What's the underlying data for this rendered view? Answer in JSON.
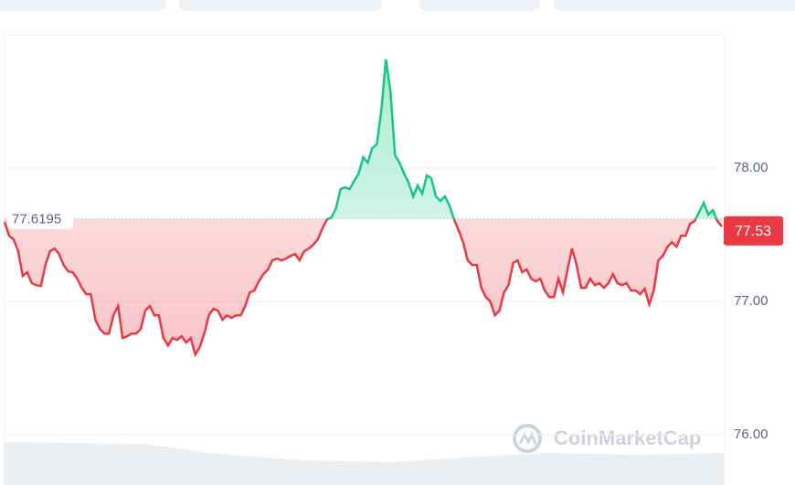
{
  "chart_data": {
    "type": "line",
    "values": [
      77.596,
      77.493,
      77.466,
      77.377,
      77.192,
      77.219,
      77.137,
      77.123,
      77.116,
      77.274,
      77.377,
      77.397,
      77.356,
      77.274,
      77.226,
      77.219,
      77.171,
      77.103,
      77.055,
      77.055,
      76.863,
      76.795,
      76.76,
      76.76,
      76.897,
      76.966,
      76.726,
      76.74,
      76.76,
      76.76,
      76.795,
      76.932,
      76.966,
      76.897,
      76.897,
      76.726,
      76.671,
      76.726,
      76.712,
      76.74,
      76.692,
      76.726,
      76.603,
      76.658,
      76.76,
      76.897,
      76.945,
      76.932,
      76.863,
      76.897,
      76.877,
      76.897,
      76.897,
      76.966,
      77.068,
      77.082,
      77.151,
      77.205,
      77.24,
      77.308,
      77.322,
      77.308,
      77.322,
      77.342,
      77.356,
      77.308,
      77.377,
      77.397,
      77.425,
      77.466,
      77.548,
      77.616,
      77.63,
      77.699,
      77.842,
      77.856,
      77.842,
      77.904,
      77.959,
      78.082,
      78.041,
      78.151,
      78.178,
      78.438,
      78.815,
      78.575,
      78.096,
      78.041,
      77.959,
      77.89,
      77.788,
      77.87,
      77.808,
      77.945,
      77.925,
      77.788,
      77.753,
      77.788,
      77.719,
      77.616,
      77.534,
      77.445,
      77.308,
      77.274,
      77.274,
      77.103,
      77.034,
      77.0,
      76.897,
      76.932,
      77.068,
      77.123,
      77.288,
      77.308,
      77.219,
      77.24,
      77.171,
      77.151,
      77.171,
      77.082,
      77.034,
      77.034,
      77.171,
      77.068,
      77.24,
      77.397,
      77.274,
      77.103,
      77.103,
      77.171,
      77.123,
      77.137,
      77.103,
      77.137,
      77.205,
      77.137,
      77.123,
      77.137,
      77.082,
      77.082,
      77.055,
      77.096,
      76.979,
      77.082,
      77.308,
      77.342,
      77.411,
      77.445,
      77.411,
      77.493,
      77.493,
      77.582,
      77.603,
      77.671,
      77.74,
      77.651,
      77.685,
      77.603,
      77.562
    ],
    "reference_value": 77.6195,
    "current_price": 77.53,
    "up_color": "#16c784",
    "down_color": "#ea3943",
    "ylim": [
      75.7,
      79.0
    ],
    "yticks": [
      {
        "value": 76,
        "label": "76.00"
      },
      {
        "value": 77,
        "label": "77.00"
      },
      {
        "value": 78,
        "label": "78.00"
      }
    ],
    "grid": true,
    "watermark": "CoinMarketCap"
  }
}
